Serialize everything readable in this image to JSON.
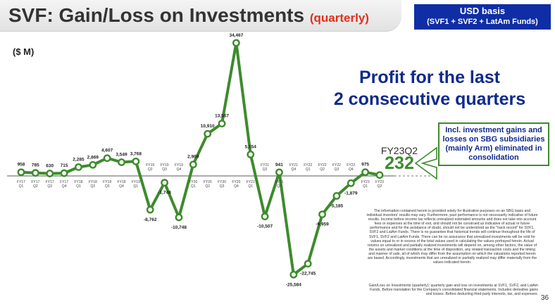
{
  "header": {
    "title": "SVF: Gain/Loss on Investments",
    "title_suffix": "(quarterly)",
    "basis_line1": "USD basis",
    "basis_line2": "(SVF1 + SVF2 + LatAm Funds)"
  },
  "unit_label": "($ M)",
  "headline": {
    "line1": "Profit for the last",
    "line2": "2 consecutive quarters"
  },
  "latest": {
    "label": "FY23Q2",
    "value": "232"
  },
  "note_box": "Incl. investment gains and losses on SBG subsidiaries (mainly Arm) eliminated in consolidation",
  "disclaimer": "The information contained herein is provided solely for illustrative purposes on an SBG basis and individual investors' results may vary. Furthermore, past performance is not necessarily indicative of future results. Income before income tax reflects unrealized estimated amounts and does not take into account fees or expenses at the time of exit, and should not be construed as indicative of actual or future performance and for the avoidance of doubt, should not be understood as the \"track record\" for SVF1, SVF2 and LatAm Funds. There is no guarantee that historical trends will continue throughout the life of SVF1, SVF2 and LatAm Funds. There can be no assurance that unrealized investments will be sold for values equal to or in excess of the total values used in calculating the values portrayed herein. Actual returns on unrealized and partially realized investments will depend on, among other factors, the value of the assets and market conditions at the time of disposition, any related transaction costs and the timing and manner of sale, all of which may differ from the assumption on which the valuations reported herein are based. Accordingly, investments that are unrealized or partially realized may differ materially from the values indicated herein.",
  "definition": "Gain/Loss on Investments (quarterly): quarterly gain and loss on investments at SVF1, SVF2, and LatAm Funds. Before translation for the Company's consolidated financial statements. Includes derivative gains and losses. Before deducting third-party interests, tax, and expenses.",
  "page_number": "36",
  "colors": {
    "line": "#3d8b2c",
    "title_accent": "#e0301e",
    "navy": "#0f2a8c",
    "basis_bg": "#0f2ea5"
  },
  "chart_data": {
    "type": "line",
    "ylabel": "($ M)",
    "categories": [
      [
        "FY17",
        "Q1"
      ],
      [
        "FY17",
        "Q2"
      ],
      [
        "FY17",
        "Q3"
      ],
      [
        "FY17",
        "Q4"
      ],
      [
        "FY18",
        "Q1"
      ],
      [
        "FY18",
        "Q2"
      ],
      [
        "FY18",
        "Q3"
      ],
      [
        "FY18",
        "Q4"
      ],
      [
        "FY19",
        "Q1"
      ],
      [
        "FY19",
        "Q2"
      ],
      [
        "FY19",
        "Q3"
      ],
      [
        "FY19",
        "Q4"
      ],
      [
        "FY20",
        "Q1"
      ],
      [
        "FY20",
        "Q2"
      ],
      [
        "FY20",
        "Q3"
      ],
      [
        "FY20",
        "Q4"
      ],
      [
        "FY21",
        "Q1"
      ],
      [
        "FY21",
        "Q2"
      ],
      [
        "FY21",
        "Q3"
      ],
      [
        "FY21",
        "Q4"
      ],
      [
        "FY22",
        "Q1"
      ],
      [
        "FY22",
        "Q2"
      ],
      [
        "FY22",
        "Q3"
      ],
      [
        "FY22",
        "Q4"
      ],
      [
        "FY23",
        "Q1"
      ],
      [
        "FY23",
        "Q2"
      ]
    ],
    "values": [
      958,
      785,
      630,
      715,
      2285,
      2869,
      4607,
      3549,
      3768,
      -8762,
      -1748,
      -10748,
      2969,
      10910,
      13567,
      34467,
      5554,
      -10507,
      941,
      -25584,
      -22745,
      -9959,
      -5185,
      -1879,
      975,
      232
    ],
    "data_labels": [
      "958",
      "785",
      "630",
      "715",
      "2,285",
      "2,869",
      "4,607",
      "3,549",
      "3,768",
      "-8,762",
      "-1,748",
      "-10,748",
      "2,969",
      "10,910",
      "13,567",
      "34,467",
      "5,554",
      "-10,507",
      "941",
      "-25,584",
      "-22,745",
      "-9,959",
      "-5,185",
      "-1,879",
      "975",
      ""
    ],
    "y_range": [
      -27000,
      36000
    ],
    "grid": false,
    "legend": "none"
  }
}
